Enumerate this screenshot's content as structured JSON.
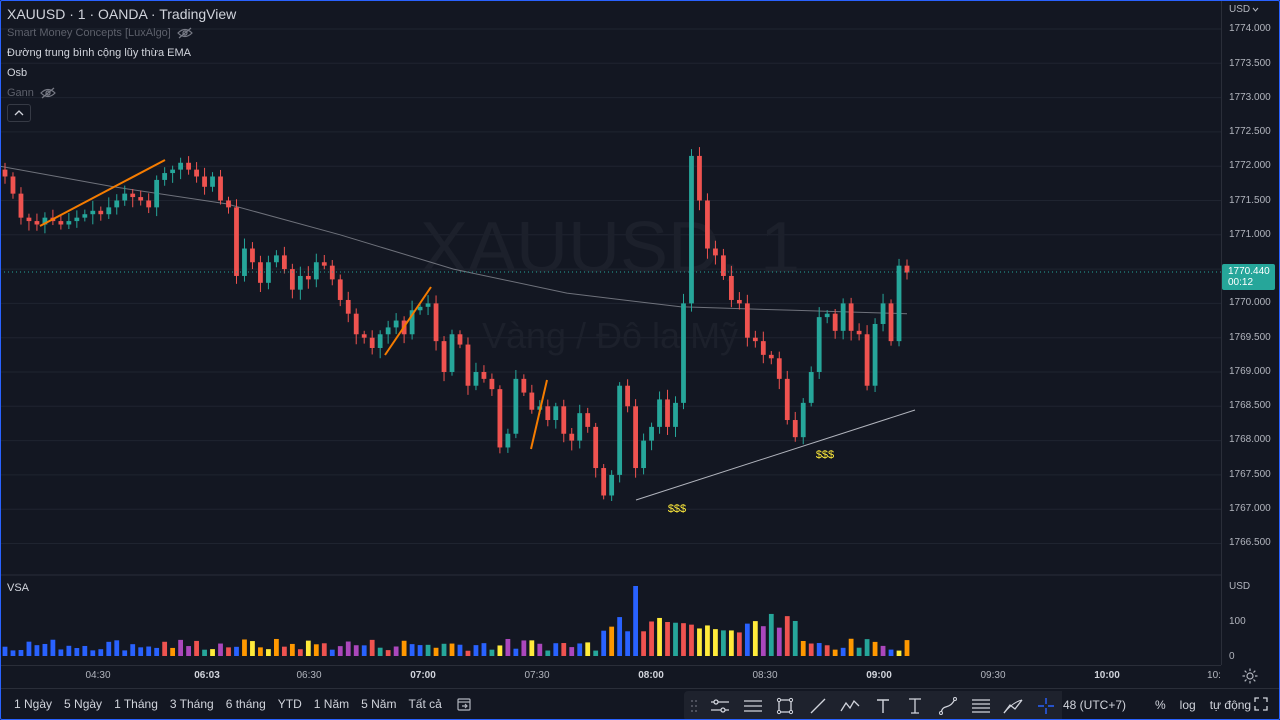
{
  "header": {
    "title": "XAUUSD · 1 · OANDA · TradingView",
    "indicators": [
      {
        "label": "Smart Money Concepts [LuxAlgo]",
        "hidden": true
      },
      {
        "label": "Đường trung bình cộng lũy thừa EMA",
        "hidden": false
      },
      {
        "label": "Osb",
        "hidden": false
      },
      {
        "label": "Gann",
        "hidden": true
      }
    ]
  },
  "watermark": {
    "symbol": "XAUUSD, 1",
    "description": "Vàng / Đô la Mỹ"
  },
  "price_axis": {
    "currency": "USD",
    "labels": [
      "1774.000",
      "1773.500",
      "1773.000",
      "1772.500",
      "1772.000",
      "1771.500",
      "1771.000",
      "1770.000",
      "1769.500",
      "1769.000",
      "1768.500",
      "1768.000",
      "1767.500",
      "1767.000",
      "1766.500"
    ],
    "current_price": "1770.440",
    "countdown": "00:12"
  },
  "volume_pane": {
    "label": "VSA",
    "currency": "USD",
    "labels": [
      "100",
      "0"
    ]
  },
  "time_axis": {
    "labels": [
      {
        "text": "04:30",
        "bold": false
      },
      {
        "text": "06:03",
        "bold": true
      },
      {
        "text": "06:30",
        "bold": false
      },
      {
        "text": "07:00",
        "bold": true
      },
      {
        "text": "07:30",
        "bold": false
      },
      {
        "text": "08:00",
        "bold": true
      },
      {
        "text": "08:30",
        "bold": false
      },
      {
        "text": "09:00",
        "bold": true
      },
      {
        "text": "09:30",
        "bold": false
      },
      {
        "text": "10:00",
        "bold": true
      },
      {
        "text": "10:",
        "bold": false
      }
    ]
  },
  "annotations": {
    "liquidity_labels": [
      "$$$",
      "$$$"
    ]
  },
  "bottom_bar": {
    "ranges": [
      "1 Ngày",
      "5 Ngày",
      "1 Tháng",
      "3 Tháng",
      "6 tháng",
      "YTD",
      "1 Năm",
      "5 Năm",
      "Tất cả"
    ],
    "timezone": "48 (UTC+7)",
    "scale_options": [
      "%",
      "log",
      "tự động"
    ]
  },
  "colors": {
    "background": "#131722",
    "up": "#26a69a",
    "down": "#ef5350",
    "ema": "#9598a1",
    "trendline": "#f57c00",
    "liquidity": "#ffeb3b",
    "accent": "#2962ff"
  },
  "chart_data": {
    "type": "candlestick",
    "symbol": "XAUUSD",
    "interval": "1",
    "ylim": [
      1766.25,
      1774.25
    ],
    "candles": [
      [
        1771.95,
        1771.85
      ],
      [
        1771.85,
        1771.6
      ],
      [
        1771.6,
        1771.25
      ],
      [
        1771.25,
        1771.2
      ],
      [
        1771.2,
        1771.15
      ],
      [
        1771.15,
        1771.25
      ],
      [
        1771.25,
        1771.2
      ],
      [
        1771.2,
        1771.15
      ],
      [
        1771.15,
        1771.2
      ],
      [
        1771.2,
        1771.25
      ],
      [
        1771.25,
        1771.3
      ],
      [
        1771.3,
        1771.35
      ],
      [
        1771.35,
        1771.3
      ],
      [
        1771.3,
        1771.4
      ],
      [
        1771.4,
        1771.5
      ],
      [
        1771.5,
        1771.6
      ],
      [
        1771.6,
        1771.55
      ],
      [
        1771.55,
        1771.5
      ],
      [
        1771.5,
        1771.4
      ],
      [
        1771.4,
        1771.8
      ],
      [
        1771.8,
        1771.9
      ],
      [
        1771.9,
        1771.95
      ],
      [
        1771.95,
        1772.05
      ],
      [
        1772.05,
        1771.95
      ],
      [
        1771.95,
        1771.85
      ],
      [
        1771.85,
        1771.7
      ],
      [
        1771.7,
        1771.85
      ],
      [
        1771.85,
        1771.5
      ],
      [
        1771.5,
        1771.4
      ],
      [
        1771.4,
        1770.4
      ],
      [
        1770.4,
        1770.8
      ],
      [
        1770.8,
        1770.6
      ],
      [
        1770.6,
        1770.3
      ],
      [
        1770.3,
        1770.6
      ],
      [
        1770.6,
        1770.7
      ],
      [
        1770.7,
        1770.5
      ],
      [
        1770.5,
        1770.2
      ],
      [
        1770.2,
        1770.4
      ],
      [
        1770.4,
        1770.35
      ],
      [
        1770.35,
        1770.6
      ],
      [
        1770.6,
        1770.55
      ],
      [
        1770.55,
        1770.35
      ],
      [
        1770.35,
        1770.05
      ],
      [
        1770.05,
        1769.85
      ],
      [
        1769.85,
        1769.55
      ],
      [
        1769.55,
        1769.5
      ],
      [
        1769.5,
        1769.35
      ],
      [
        1769.35,
        1769.55
      ],
      [
        1769.55,
        1769.65
      ],
      [
        1769.65,
        1769.75
      ],
      [
        1769.75,
        1769.55
      ],
      [
        1769.55,
        1769.9
      ],
      [
        1769.9,
        1769.95
      ],
      [
        1769.95,
        1770.0
      ],
      [
        1770.0,
        1769.45
      ],
      [
        1769.45,
        1769.0
      ],
      [
        1769.0,
        1769.55
      ],
      [
        1769.55,
        1769.4
      ],
      [
        1769.4,
        1768.8
      ],
      [
        1768.8,
        1769.0
      ],
      [
        1769.0,
        1768.9
      ],
      [
        1768.9,
        1768.75
      ],
      [
        1768.75,
        1767.9
      ],
      [
        1767.9,
        1768.1
      ],
      [
        1768.1,
        1768.9
      ],
      [
        1768.9,
        1768.7
      ],
      [
        1768.7,
        1768.45
      ],
      [
        1768.45,
        1768.5
      ],
      [
        1768.5,
        1768.3
      ],
      [
        1768.3,
        1768.5
      ],
      [
        1768.5,
        1768.1
      ],
      [
        1768.1,
        1768.0
      ],
      [
        1768.0,
        1768.4
      ],
      [
        1768.4,
        1768.2
      ],
      [
        1768.2,
        1767.6
      ],
      [
        1767.6,
        1767.2
      ],
      [
        1767.2,
        1767.5
      ],
      [
        1767.5,
        1768.8
      ],
      [
        1768.8,
        1768.5
      ],
      [
        1768.5,
        1767.6
      ],
      [
        1767.6,
        1768.0
      ],
      [
        1768.0,
        1768.2
      ],
      [
        1768.2,
        1768.6
      ],
      [
        1768.6,
        1768.2
      ],
      [
        1768.2,
        1768.55
      ],
      [
        1768.55,
        1770.0
      ],
      [
        1770.0,
        1772.15
      ],
      [
        1772.15,
        1771.5
      ],
      [
        1771.5,
        1770.8
      ],
      [
        1770.8,
        1770.7
      ],
      [
        1770.7,
        1770.4
      ],
      [
        1770.4,
        1770.05
      ],
      [
        1770.05,
        1770.0
      ],
      [
        1770.0,
        1769.5
      ],
      [
        1769.5,
        1769.45
      ],
      [
        1769.45,
        1769.25
      ],
      [
        1769.25,
        1769.2
      ],
      [
        1769.2,
        1768.9
      ],
      [
        1768.9,
        1768.3
      ],
      [
        1768.3,
        1768.05
      ],
      [
        1768.05,
        1768.55
      ],
      [
        1768.55,
        1769.0
      ],
      [
        1769.0,
        1769.8
      ],
      [
        1769.8,
        1769.85
      ],
      [
        1769.85,
        1769.6
      ],
      [
        1769.6,
        1770.0
      ],
      [
        1770.0,
        1769.6
      ],
      [
        1769.6,
        1769.55
      ],
      [
        1769.55,
        1768.8
      ],
      [
        1768.8,
        1769.7
      ],
      [
        1769.7,
        1770.0
      ],
      [
        1770.0,
        1769.45
      ],
      [
        1769.45,
        1770.55
      ],
      [
        1770.55,
        1770.45
      ]
    ],
    "ema": [
      1772.0,
      1771.7,
      1771.45,
      1771.0,
      1770.5,
      1770.15,
      1769.95,
      1769.9,
      1769.85
    ]
  }
}
